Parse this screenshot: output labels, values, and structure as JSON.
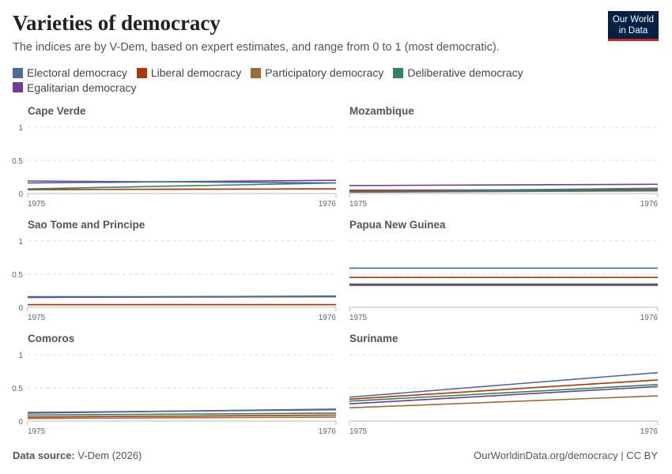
{
  "title": "Varieties of democracy",
  "subtitle": "The indices are by V-Dem, based on expert estimates, and range from 0 to 1 (most democratic).",
  "logo": "Our World in Data",
  "source_label": "Data source:",
  "source": "V-Dem (2026)",
  "credit": "OurWorldinData.org/democracy | CC BY",
  "chart_data": {
    "type": "line",
    "x": [
      1975,
      1976
    ],
    "ylim": [
      0,
      1
    ],
    "yticks": [
      "0",
      "0.5",
      "1"
    ],
    "xticks": [
      "1975",
      "1976"
    ],
    "grid": true,
    "legend_placement": "top",
    "series_names": [
      "Electoral democracy",
      "Liberal democracy",
      "Participatory democracy",
      "Deliberative democracy",
      "Egalitarian democracy"
    ],
    "colors": [
      "#4c6a9c",
      "#b13507",
      "#9a6d38",
      "#2c8465",
      "#6d3e91"
    ],
    "panels": [
      {
        "title": "Cape Verde",
        "values": [
          [
            0.19,
            0.16
          ],
          [
            0.06,
            0.07
          ],
          [
            0.06,
            0.07
          ],
          [
            0.07,
            0.16
          ],
          [
            0.16,
            0.2
          ]
        ]
      },
      {
        "title": "Mozambique",
        "values": [
          [
            0.03,
            0.08
          ],
          [
            0.05,
            0.06
          ],
          [
            0.02,
            0.04
          ],
          [
            0.03,
            0.05
          ],
          [
            0.12,
            0.14
          ]
        ]
      },
      {
        "title": "Sao Tome and Principe",
        "values": [
          [
            0.16,
            0.16
          ],
          [
            0.04,
            0.04
          ],
          [
            0.04,
            0.04
          ],
          [
            0.15,
            0.17
          ],
          [
            0.15,
            0.16
          ]
        ]
      },
      {
        "title": "Papua New Guinea",
        "values": [
          [
            0.59,
            0.59
          ],
          [
            0.45,
            0.45
          ],
          [
            0.33,
            0.33
          ],
          [
            0.35,
            0.35
          ],
          [
            0.34,
            0.34
          ]
        ]
      },
      {
        "title": "Comoros",
        "values": [
          [
            0.13,
            0.17
          ],
          [
            0.06,
            0.09
          ],
          [
            0.04,
            0.06
          ],
          [
            0.09,
            0.12
          ],
          [
            0.12,
            0.18
          ]
        ]
      },
      {
        "title": "Suriname",
        "values": [
          [
            0.36,
            0.73
          ],
          [
            0.33,
            0.62
          ],
          [
            0.2,
            0.38
          ],
          [
            0.3,
            0.55
          ],
          [
            0.26,
            0.52
          ]
        ]
      }
    ]
  }
}
